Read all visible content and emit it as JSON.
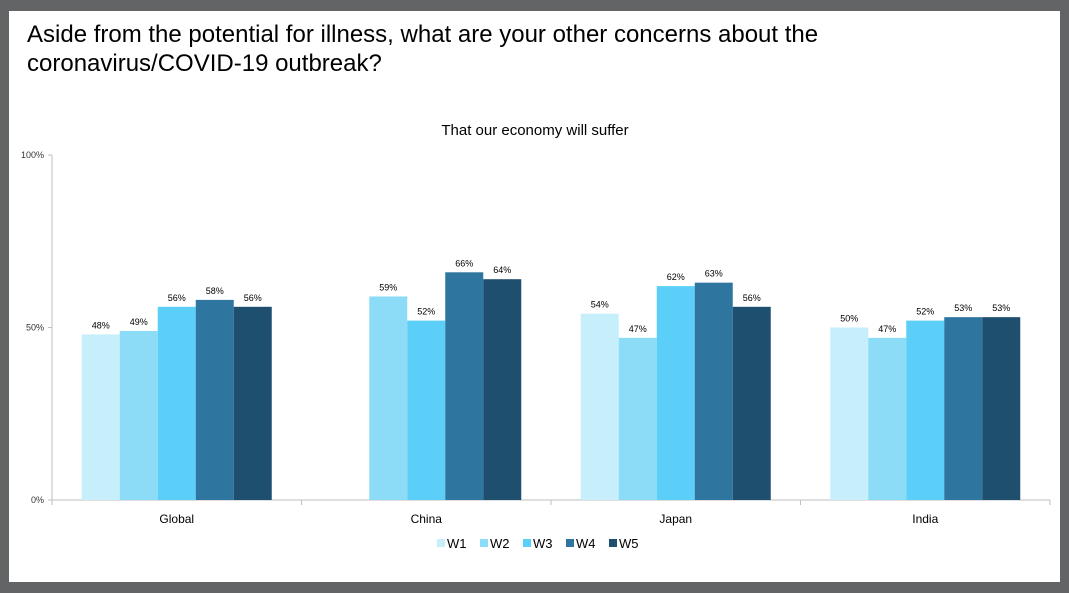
{
  "title": "Aside from the potential for illness, what are your other concerns about the coronavirus/COVID-19 outbreak?",
  "chart_data": {
    "type": "bar",
    "title": "That our economy will suffer",
    "xlabel": "",
    "ylabel": "",
    "ylim": [
      0,
      100
    ],
    "yticks": [
      "0%",
      "50%",
      "100%"
    ],
    "categories": [
      "Global",
      "China",
      "Japan",
      "India"
    ],
    "legend_position": "bottom",
    "series": [
      {
        "name": "W1",
        "color": "#c6eefb",
        "values": [
          48,
          null,
          54,
          50
        ]
      },
      {
        "name": "W2",
        "color": "#8cdcf8",
        "values": [
          49,
          59,
          47,
          47
        ]
      },
      {
        "name": "W3",
        "color": "#5bcff7",
        "values": [
          56,
          52,
          62,
          52
        ]
      },
      {
        "name": "W4",
        "color": "#2e75a0",
        "values": [
          58,
          66,
          63,
          53
        ]
      },
      {
        "name": "W5",
        "color": "#1f4f6e",
        "values": [
          56,
          64,
          56,
          53
        ]
      }
    ]
  }
}
